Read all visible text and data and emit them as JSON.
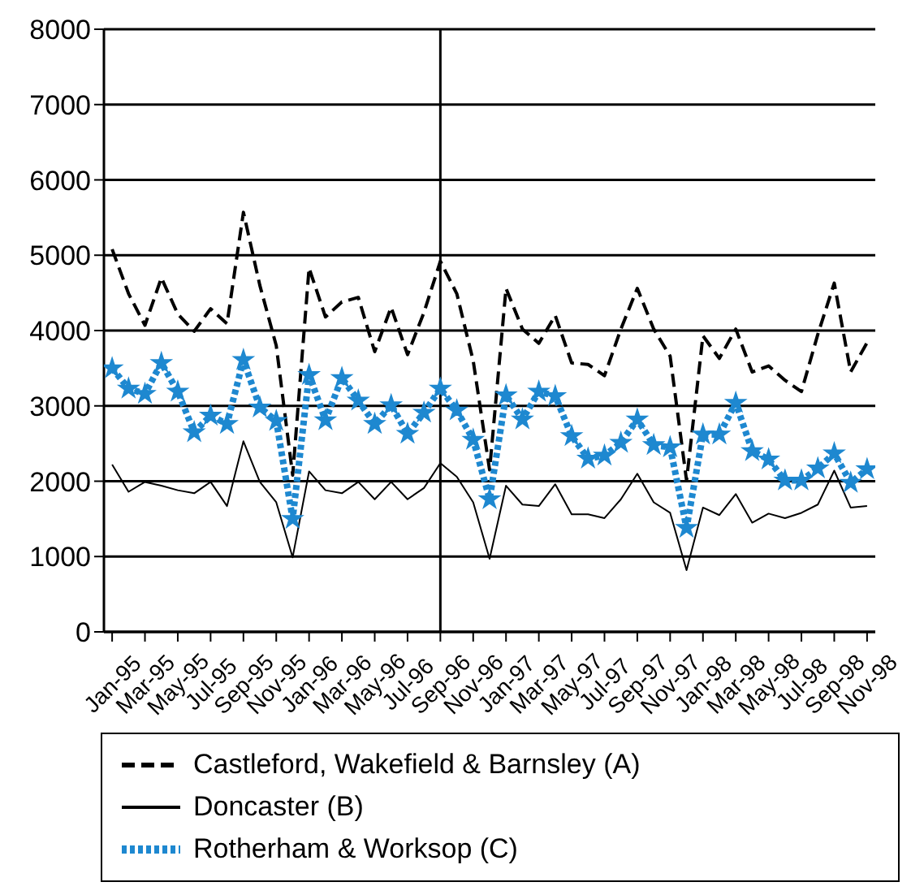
{
  "chart_data": {
    "type": "line",
    "categories": [
      "Jan-95",
      null,
      "Mar-95",
      null,
      "May-95",
      null,
      "Jul-95",
      null,
      "Sep-95",
      null,
      "Nov-95",
      null,
      "Jan-96",
      null,
      "Mar-96",
      null,
      "May-96",
      null,
      "Jul-96",
      null,
      "Sep-96",
      null,
      "Nov-96",
      null,
      "Jan-97",
      null,
      "Mar-97",
      null,
      "May-97",
      null,
      "Jul-97",
      null,
      "Sep-97",
      null,
      "Nov-97",
      null,
      "Jan-98",
      null,
      "Mar-98",
      null,
      "May-98",
      null,
      "Jul-98",
      null,
      "Sep-98",
      null,
      "Nov-98"
    ],
    "series": [
      {
        "name": "Castleford, Wakefield & Barnsley (A)",
        "color": "#000000",
        "line_style": "dashed",
        "marker": "none",
        "values": [
          5080,
          4490,
          4070,
          4700,
          4220,
          3990,
          4290,
          4090,
          5570,
          4600,
          3800,
          2080,
          4830,
          4180,
          4380,
          4440,
          3720,
          4310,
          3680,
          4240,
          4920,
          4490,
          3600,
          2150,
          4560,
          4020,
          3830,
          4200,
          3570,
          3550,
          3400,
          4020,
          4560,
          4020,
          3660,
          2010,
          3930,
          3630,
          4020,
          3450,
          3530,
          3340,
          3190,
          3950,
          4630,
          3450,
          3840
        ]
      },
      {
        "name": "Doncaster (B)",
        "color": "#000000",
        "line_style": "solid",
        "marker": "none",
        "values": [
          2220,
          1860,
          1990,
          1940,
          1880,
          1840,
          1990,
          1670,
          2530,
          1990,
          1720,
          990,
          2130,
          1880,
          1840,
          1990,
          1760,
          1990,
          1760,
          1910,
          2240,
          2060,
          1720,
          970,
          1940,
          1690,
          1670,
          1960,
          1560,
          1560,
          1510,
          1760,
          2100,
          1720,
          1580,
          820,
          1650,
          1550,
          1830,
          1450,
          1570,
          1510,
          1580,
          1690,
          2140,
          1650,
          1670
        ]
      },
      {
        "name": "Rotherham & Worksop (C)",
        "color": "#1e88d0",
        "line_style": "dotted",
        "marker": "star",
        "values": [
          3500,
          3230,
          3160,
          3570,
          3190,
          2650,
          2870,
          2760,
          3610,
          2980,
          2800,
          1500,
          3410,
          2810,
          3370,
          3070,
          2760,
          3010,
          2630,
          2910,
          3230,
          2940,
          2550,
          1760,
          3140,
          2820,
          3190,
          3130,
          2600,
          2300,
          2340,
          2510,
          2820,
          2480,
          2450,
          1380,
          2620,
          2620,
          3040,
          2400,
          2290,
          2010,
          2010,
          2170,
          2370,
          1980,
          2160
        ]
      }
    ],
    "ylim": [
      0,
      8000
    ],
    "yticks": [
      0,
      1000,
      2000,
      3000,
      4000,
      5000,
      6000,
      7000,
      8000
    ],
    "grid": "y",
    "legend": "bottom",
    "ref_lines": [
      {
        "axis": "x",
        "value": "Sep-96",
        "color": "#000000"
      }
    ]
  }
}
